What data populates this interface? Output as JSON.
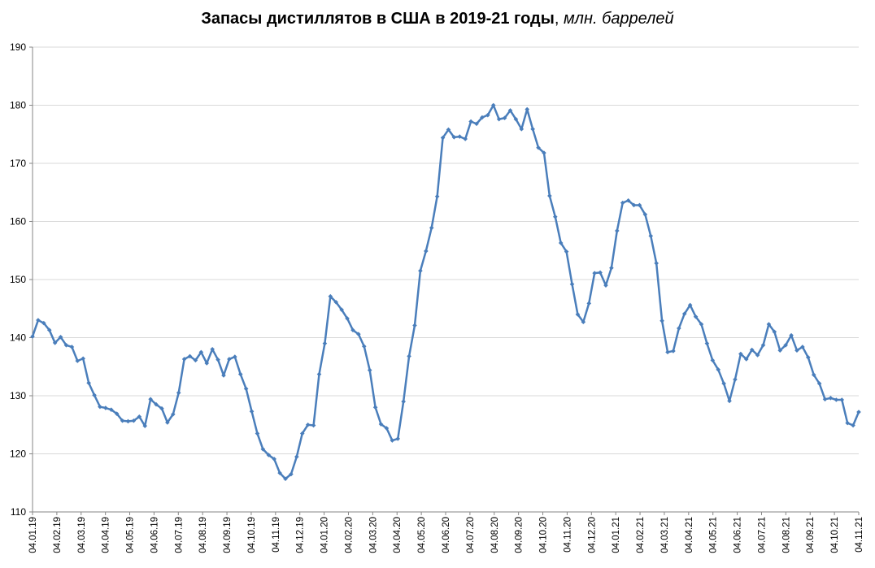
{
  "chart_data": {
    "type": "line",
    "title": "Запасы дистиллятов в США в 2019-21 годы",
    "title_unit": "млн. баррелей",
    "ylim": [
      110,
      190
    ],
    "y_ticks": [
      "110",
      "120",
      "130",
      "140",
      "150",
      "160",
      "170",
      "180",
      "190"
    ],
    "x_tick_labels": [
      "04.01.19",
      "04.02.19",
      "04.03.19",
      "04.04.19",
      "04.05.19",
      "04.06.19",
      "04.07.19",
      "04.08.19",
      "04.09.19",
      "04.10.19",
      "04.11.19",
      "04.12.19",
      "04.01.20",
      "04.02.20",
      "04.03.20",
      "04.04.20",
      "04.05.20",
      "04.06.20",
      "04.07.20",
      "04.08.20",
      "04.09.20",
      "04.10.20",
      "04.11.20",
      "04.12.20",
      "04.01.21",
      "04.02.21",
      "04.03.21",
      "04.04.21",
      "04.05.21",
      "04.06.21",
      "04.07.21",
      "04.08.21",
      "04.09.21",
      "04.10.21",
      "04.11.21"
    ],
    "grid": "horizontal",
    "legend": "none",
    "line_color": "#4a7ebb",
    "series": [
      {
        "values": [
          140.2,
          143.0,
          142.5,
          141.3,
          139.1,
          140.1,
          138.7,
          138.4,
          136.0,
          136.4,
          132.2,
          130.1,
          128.1,
          127.9,
          127.6,
          126.9,
          125.7,
          125.6,
          125.7,
          126.4,
          124.8,
          129.4,
          128.5,
          127.8,
          125.4,
          126.8,
          130.5,
          136.3,
          136.8,
          136.1,
          137.5,
          135.6,
          138.0,
          136.2,
          133.5,
          136.3,
          136.7,
          133.7,
          131.2,
          127.3,
          123.5,
          120.8,
          119.8,
          119.1,
          116.7,
          115.7,
          116.5,
          119.5,
          123.5,
          125.0,
          124.9,
          133.7,
          139.0,
          147.1,
          146.1,
          144.8,
          143.3,
          141.3,
          140.6,
          138.5,
          134.4,
          128.0,
          125.1,
          124.4,
          122.3,
          122.6,
          129.0,
          136.8,
          142.1,
          151.5,
          154.9,
          158.9,
          164.3,
          174.4,
          175.8,
          174.5,
          174.6,
          174.2,
          177.2,
          176.8,
          177.9,
          178.3,
          180.0,
          177.6,
          177.8,
          179.1,
          177.6,
          175.9,
          179.3,
          175.9,
          172.7,
          171.8,
          164.4,
          160.8,
          156.3,
          154.8,
          149.2,
          144.0,
          142.7,
          145.9,
          151.1,
          151.2,
          149.0,
          152.0,
          158.4,
          163.2,
          163.6,
          162.8,
          162.8,
          161.2,
          157.5,
          152.8,
          142.9,
          137.5,
          137.7,
          141.6,
          144.1,
          145.6,
          143.6,
          142.3,
          139.0,
          136.1,
          134.5,
          132.1,
          129.1,
          132.8,
          137.2,
          136.3,
          137.9,
          137.0,
          138.7,
          142.3,
          141.0,
          137.8,
          138.7,
          140.4,
          137.8,
          138.4,
          136.6,
          133.6,
          132.1,
          129.4,
          129.6,
          129.3,
          129.3,
          125.3,
          124.9,
          127.2
        ]
      }
    ]
  }
}
